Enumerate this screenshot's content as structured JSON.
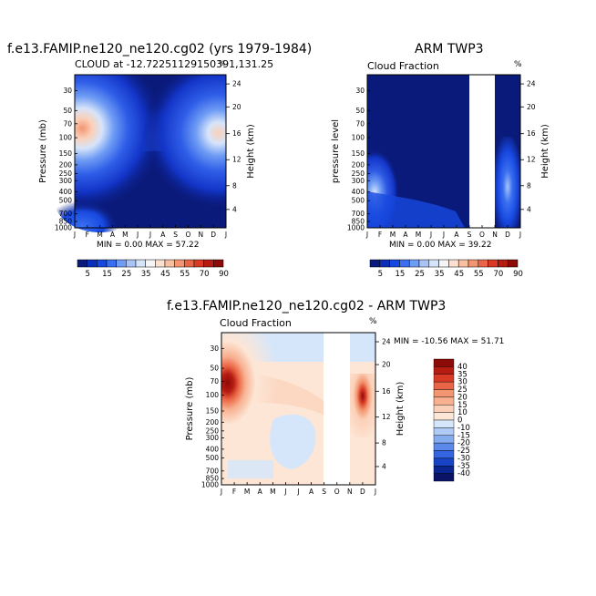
{
  "figure_title": "f.e13.FAMIP.ne120_ne120.cg02 (yrs 1979-1984)",
  "units_symbol": "%",
  "charts": [
    {
      "id": "model",
      "title": "f.e13.FAMIP.ne120_ne120.cg02 (yrs 1979-1984)",
      "subtitle_left": "CLOUD at -12.72251129150391,131.25",
      "subtitle_right": "",
      "ylabel": "Pressure (mb)",
      "ylabel_right": "Height (km)",
      "min_max": "MIN =    0.00  MAX =   57.22"
    },
    {
      "id": "obs",
      "title": "ARM TWP3",
      "subtitle_left": "Cloud Fraction",
      "subtitle_right": "%",
      "ylabel": "pressure level",
      "ylabel_right": "Height (km)",
      "min_max": "MIN =    0.00  MAX =   39.22"
    },
    {
      "id": "diff",
      "title": "f.e13.FAMIP.ne120_ne120.cg02 - ARM TWP3",
      "subtitle_left": "Cloud Fraction",
      "subtitle_right": "%",
      "ylabel": "Pressure (mb)",
      "ylabel_right": "Height (km)",
      "min_max": "MIN = -10.56  MAX =   51.71"
    }
  ],
  "chart_data": {
    "type": "heatmap",
    "months": [
      "J",
      "F",
      "M",
      "A",
      "M",
      "J",
      "J",
      "A",
      "S",
      "O",
      "N",
      "D",
      "J"
    ],
    "pressure_ticks": [
      30,
      50,
      70,
      100,
      150,
      200,
      250,
      300,
      400,
      500,
      700,
      850,
      1000
    ],
    "height_ticks": [
      24,
      20,
      16,
      12,
      8,
      4
    ],
    "ylim_pressure_mb": [
      1000,
      20
    ],
    "model_cloud_pct_by_month": [
      {
        "month": "J",
        "p150": 50,
        "p200": 45,
        "p300": 25,
        "p500": 15,
        "p850": 10
      },
      {
        "month": "F",
        "p150": 57,
        "p200": 50,
        "p300": 20,
        "p500": 12,
        "p850": 10
      },
      {
        "month": "M",
        "p150": 35,
        "p200": 25,
        "p300": 12,
        "p500": 8,
        "p850": 8
      },
      {
        "month": "A",
        "p150": 15,
        "p200": 10,
        "p300": 5,
        "p500": 3,
        "p850": 5
      },
      {
        "month": "M",
        "p150": 8,
        "p200": 5,
        "p300": 2,
        "p500": 1,
        "p850": 2
      },
      {
        "month": "J",
        "p150": 6,
        "p200": 4,
        "p300": 1,
        "p500": 1,
        "p850": 2
      },
      {
        "month": "J",
        "p150": 6,
        "p200": 4,
        "p300": 1,
        "p500": 1,
        "p850": 2
      },
      {
        "month": "A",
        "p150": 6,
        "p200": 4,
        "p300": 1,
        "p500": 1,
        "p850": 2
      },
      {
        "month": "S",
        "p150": 8,
        "p200": 5,
        "p300": 2,
        "p500": 1,
        "p850": 2
      },
      {
        "month": "O",
        "p150": 12,
        "p200": 8,
        "p300": 4,
        "p500": 2,
        "p850": 3
      },
      {
        "month": "N",
        "p150": 22,
        "p200": 15,
        "p300": 8,
        "p500": 5,
        "p850": 5
      },
      {
        "month": "D",
        "p150": 45,
        "p200": 35,
        "p300": 18,
        "p500": 10,
        "p850": 8
      }
    ],
    "obs_missing_months": [
      "O",
      "N"
    ],
    "colorbar_abs": {
      "labels": [
        "5",
        "15",
        "25",
        "35",
        "45",
        "55",
        "70",
        "90"
      ],
      "colors": [
        "#0a1a7a",
        "#0c2fb8",
        "#1748e0",
        "#3a6ff0",
        "#6f9cf4",
        "#a8c4f7",
        "#d6e4fa",
        "#f5f5f5",
        "#fbe0d0",
        "#f8c0a0",
        "#f39570",
        "#ea6545",
        "#d83a25",
        "#b71c12",
        "#8c0a08"
      ]
    },
    "colorbar_diff": {
      "labels": [
        "40",
        "35",
        "30",
        "25",
        "20",
        "15",
        "10",
        "0",
        "-10",
        "-15",
        "-20",
        "-25",
        "-30",
        "-35",
        "-40"
      ],
      "colors": [
        "#8c0a08",
        "#b71c12",
        "#d83a25",
        "#ea6545",
        "#f39570",
        "#f8b090",
        "#fbd0b8",
        "#fde6d6",
        "#d6e6fa",
        "#b0cbf5",
        "#86acf0",
        "#5c8aea",
        "#3464e0",
        "#1743c4",
        "#0a2490",
        "#0a1366"
      ]
    }
  }
}
